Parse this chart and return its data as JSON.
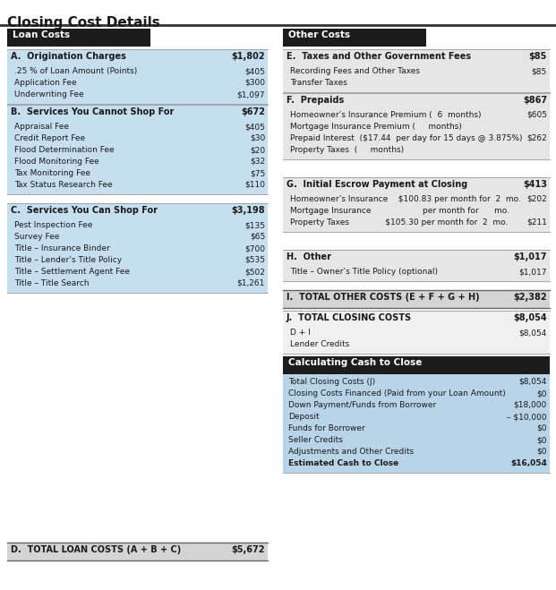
{
  "title": "Closing Cost Details",
  "bg_color": "#ffffff",
  "black_header_bg": "#1c1c1c",
  "black_header_fg": "#ffffff",
  "light_blue_bg": "#c5dff0",
  "light_gray_bg": "#d4d4d4",
  "calc_blue_bg": "#b8d4e8",
  "white_bg": "#f5f5f5",
  "sections": {
    "loan_costs_header": "Loan Costs",
    "other_costs_header": "Other Costs",
    "A_label": "A.  Origination Charges",
    "A_value": "$1,802",
    "A_items": [
      [
        ".25 % of Loan Amount (Points)",
        "$405"
      ],
      [
        "Application Fee",
        "$300"
      ],
      [
        "Underwriting Fee",
        "$1,097"
      ]
    ],
    "B_label": "B.  Services You Cannot Shop For",
    "B_value": "$672",
    "B_items": [
      [
        "Appraisal Fee",
        "$405"
      ],
      [
        "Credit Report Fee",
        "$30"
      ],
      [
        "Flood Determination Fee",
        "$20"
      ],
      [
        "Flood Monitoring Fee",
        "$32"
      ],
      [
        "Tax Monitoring Fee",
        "$75"
      ],
      [
        "Tax Status Research Fee",
        "$110"
      ]
    ],
    "C_label": "C.  Services You Can Shop For",
    "C_value": "$3,198",
    "C_items": [
      [
        "Pest Inspection Fee",
        "$135"
      ],
      [
        "Survey Fee",
        "$65"
      ],
      [
        "Title – Insurance Binder",
        "$700"
      ],
      [
        "Title – Lender’s Title Policy",
        "$535"
      ],
      [
        "Title – Settlement Agent Fee",
        "$502"
      ],
      [
        "Title – Title Search",
        "$1,261"
      ]
    ],
    "D_label": "D.  TOTAL LOAN COSTS (A + B + C)",
    "D_value": "$5,672",
    "E_label": "E.  Taxes and Other Government Fees",
    "E_value": "$85",
    "E_items": [
      [
        "Recording Fees and Other Taxes",
        "$85"
      ],
      [
        "Transfer Taxes",
        ""
      ]
    ],
    "F_label": "F.  Prepaids",
    "F_value": "$867",
    "F_items": [
      [
        "Homeowner’s Insurance Premium (  6  months)",
        "$605"
      ],
      [
        "Mortgage Insurance Premium (     months)",
        ""
      ],
      [
        "Prepaid Interest  ($17.44  per day for 15 days @ 3.875%)",
        "$262"
      ],
      [
        "Property Taxes  (     months)",
        ""
      ]
    ],
    "G_label": "G.  Initial Escrow Payment at Closing",
    "G_value": "$413",
    "G_items": [
      [
        "Homeowner’s Insurance    $100.83 per month for  2  mo.",
        "$202"
      ],
      [
        "Mortgage Insurance                    per month for      mo.",
        ""
      ],
      [
        "Property Taxes              $105.30 per month for  2  mo.",
        "$211"
      ]
    ],
    "H_label": "H.  Other",
    "H_value": "$1,017",
    "H_items": [
      [
        "Title – Owner’s Title Policy (optional)",
        "$1,017"
      ]
    ],
    "I_label": "I.  TOTAL OTHER COSTS (E + F + G + H)",
    "I_value": "$2,382",
    "J_label": "J.  TOTAL CLOSING COSTS",
    "J_value": "$8,054",
    "J_items": [
      [
        "D + I",
        "$8,054"
      ],
      [
        "Lender Credits",
        ""
      ]
    ],
    "calc_header": "Calculating Cash to Close",
    "calc_items": [
      [
        "Total Closing Costs (J)",
        "$8,054"
      ],
      [
        "Closing Costs Financed (Paid from your Loan Amount)",
        "$0"
      ],
      [
        "Down Payment/Funds from Borrower",
        "$18,000"
      ],
      [
        "Deposit",
        "– $10,000"
      ],
      [
        "Funds for Borrower",
        "$0"
      ],
      [
        "Seller Credits",
        "$0"
      ],
      [
        "Adjustments and Other Credits",
        "$0"
      ],
      [
        "Estimated Cash to Close",
        "$16,054"
      ]
    ]
  }
}
